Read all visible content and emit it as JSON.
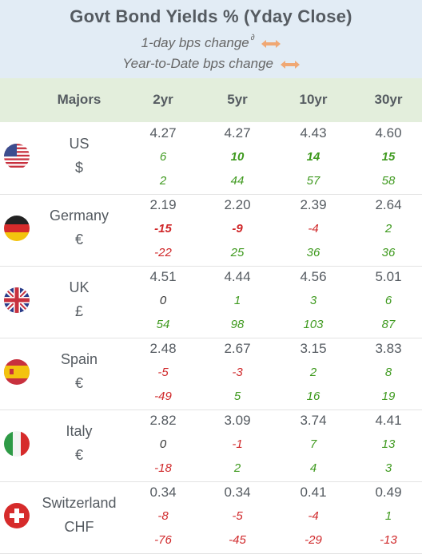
{
  "title": "Govt Bond Yields %  (Yday Close)",
  "subtitle1": "1-day bps change",
  "subtitle1_sup": "∂",
  "subtitle2": "Year-to-Date bps change",
  "columns": [
    "Majors",
    "2yr",
    "5yr",
    "10yr",
    "30yr"
  ],
  "rows": [
    {
      "country": "US",
      "currency": "$",
      "flag": "us-flag-icon",
      "yields": [
        "4.27",
        "4.27",
        "4.43",
        "4.60"
      ],
      "day": [
        "6",
        "10",
        "14",
        "15"
      ],
      "ytd": [
        "2",
        "44",
        "57",
        "58"
      ]
    },
    {
      "country": "Germany",
      "currency": "€",
      "flag": "germany-flag-icon",
      "yields": [
        "2.19",
        "2.20",
        "2.39",
        "2.64"
      ],
      "day": [
        "-15",
        "-9",
        "-4",
        "2"
      ],
      "ytd": [
        "-22",
        "25",
        "36",
        "36"
      ]
    },
    {
      "country": "UK",
      "currency": "£",
      "flag": "uk-flag-icon",
      "yields": [
        "4.51",
        "4.44",
        "4.56",
        "5.01"
      ],
      "day": [
        "0",
        "1",
        "3",
        "6"
      ],
      "ytd": [
        "54",
        "98",
        "103",
        "87"
      ]
    },
    {
      "country": "Spain",
      "currency": "€",
      "flag": "spain-flag-icon",
      "yields": [
        "2.48",
        "2.67",
        "3.15",
        "3.83"
      ],
      "day": [
        "-5",
        "-3",
        "2",
        "8"
      ],
      "ytd": [
        "-49",
        "5",
        "16",
        "19"
      ]
    },
    {
      "country": "Italy",
      "currency": "€",
      "flag": "italy-flag-icon",
      "yields": [
        "2.82",
        "3.09",
        "3.74",
        "4.41"
      ],
      "day": [
        "0",
        "-1",
        "7",
        "13"
      ],
      "ytd": [
        "-18",
        "2",
        "4",
        "3"
      ]
    },
    {
      "country": "Switzerland",
      "currency": "CHF",
      "flag": "switzerland-flag-icon",
      "yields": [
        "0.34",
        "0.34",
        "0.41",
        "0.49"
      ],
      "day": [
        "-8",
        "-5",
        "-4",
        "1"
      ],
      "ytd": [
        "-76",
        "-45",
        "-29",
        "-13"
      ]
    }
  ],
  "colors": {
    "positive": "#3f9a1f",
    "negative": "#d0282a",
    "header_bg": "#e2ecf5",
    "colhead_bg": "#e3eedc",
    "arrow": "#f0a874"
  }
}
